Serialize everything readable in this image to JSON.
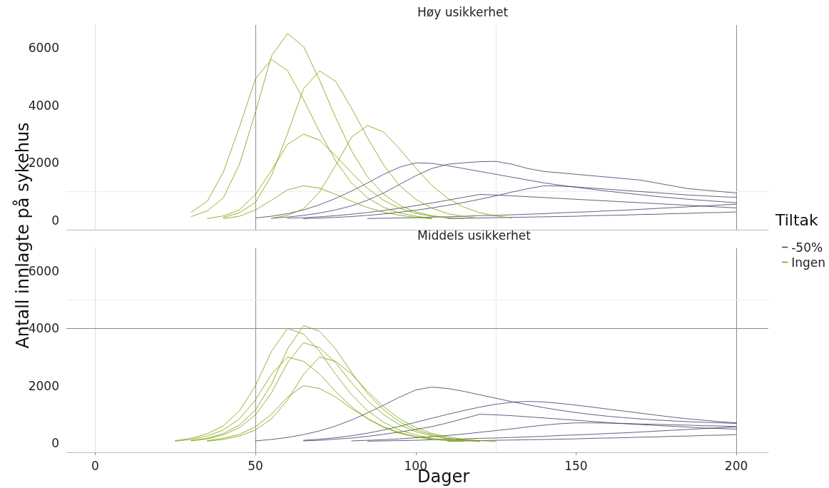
{
  "chart_data": [
    {
      "type": "line",
      "title": "Høy usikkerhet",
      "ylabel": "Antall innlagte på sykehus",
      "legend_title": "Tiltak",
      "legend": "right",
      "tick_labels": "y",
      "grid": false,
      "marker": "none",
      "xlim": [
        -9,
        210
      ],
      "xticks": [
        0,
        50,
        100,
        150,
        200
      ],
      "ylim": [
        -330,
        6800
      ],
      "yticks": [
        0,
        2000,
        4000,
        6000
      ],
      "ref_lines": [
        {
          "axis": "x",
          "value": 50,
          "label": null,
          "color": "#8c8c8c"
        },
        {
          "axis": "x",
          "value": 125,
          "label": null,
          "color": "#e8e8e8"
        },
        {
          "axis": "x",
          "value": 200,
          "label": null,
          "color": "#8c8c8c"
        },
        {
          "axis": "y",
          "value": 1000,
          "label": null,
          "color": "#ececec"
        }
      ],
      "series": [
        {
          "name": "-50%",
          "color": "#3a3b60",
          "x": [
            55,
            60,
            65,
            70,
            75,
            80,
            85,
            90,
            95,
            100,
            105,
            110,
            115,
            120,
            125,
            130,
            135,
            140,
            145,
            150,
            155,
            160,
            165,
            170,
            175,
            180,
            185,
            190,
            195,
            200
          ],
          "values": [
            70,
            110,
            170,
            250,
            360,
            500,
            700,
            950,
            1250,
            1550,
            1800,
            1950,
            2000,
            2040,
            2050,
            1950,
            1800,
            1700,
            1650,
            1600,
            1550,
            1500,
            1450,
            1400,
            1300,
            1200,
            1100,
            1050,
            1000,
            950
          ]
        },
        {
          "color": "#3a3b60",
          "x": [
            50,
            55,
            60,
            65,
            70,
            75,
            80,
            85,
            90,
            95,
            100,
            105,
            110,
            115,
            120,
            125,
            130,
            135,
            140,
            145,
            150,
            155,
            160,
            165,
            170,
            175,
            180,
            185,
            190,
            195,
            200
          ],
          "values": [
            80,
            140,
            230,
            360,
            540,
            760,
            1020,
            1300,
            1600,
            1850,
            2000,
            1980,
            1900,
            1800,
            1700,
            1600,
            1500,
            1400,
            1300,
            1220,
            1150,
            1080,
            1010,
            950,
            890,
            830,
            780,
            730,
            690,
            650,
            610
          ]
        },
        {
          "color": "#3a3b60",
          "x": [
            65,
            70,
            75,
            80,
            85,
            90,
            95,
            100,
            105,
            110,
            115,
            120,
            125,
            130,
            135,
            140,
            145,
            150,
            155,
            160,
            165,
            170,
            175,
            180,
            185,
            190,
            195,
            200
          ],
          "values": [
            55,
            75,
            100,
            130,
            170,
            220,
            280,
            350,
            430,
            520,
            620,
            730,
            850,
            980,
            1100,
            1200,
            1190,
            1160,
            1120,
            1080,
            1040,
            1000,
            960,
            920,
            880,
            850,
            820,
            800
          ]
        },
        {
          "color": "#3a3b60",
          "x": [
            85,
            90,
            95,
            100,
            105,
            110,
            115,
            120,
            125,
            130,
            135,
            140,
            145,
            150,
            155,
            160,
            165,
            170,
            175,
            180,
            185,
            190,
            195,
            200
          ],
          "values": [
            60,
            70,
            80,
            90,
            110,
            120,
            140,
            160,
            170,
            190,
            210,
            230,
            260,
            280,
            300,
            330,
            350,
            380,
            410,
            440,
            470,
            500,
            530,
            560
          ]
        },
        {
          "color": "#3a3b60",
          "x": [
            60,
            65,
            70,
            75,
            80,
            85,
            90,
            95,
            100,
            105,
            110,
            115,
            120,
            125,
            130,
            135,
            140,
            145,
            150,
            155,
            160,
            165,
            170,
            175,
            180,
            185,
            190,
            195,
            200
          ],
          "values": [
            70,
            90,
            120,
            160,
            210,
            270,
            340,
            420,
            510,
            600,
            700,
            800,
            900,
            880,
            850,
            820,
            790,
            760,
            730,
            700,
            670,
            640,
            610,
            580,
            550,
            520,
            490,
            460,
            430
          ]
        },
        {
          "color": "#3a3b60",
          "x": [
            110,
            115,
            120,
            125,
            130,
            135,
            140,
            145,
            150,
            155,
            160,
            165,
            170,
            175,
            180,
            185,
            190,
            195,
            200
          ],
          "values": [
            60,
            70,
            80,
            90,
            100,
            110,
            120,
            130,
            140,
            160,
            170,
            180,
            200,
            210,
            230,
            240,
            260,
            270,
            290
          ]
        },
        {
          "name": "Ingen",
          "color": "#77a000",
          "x": [
            30,
            35,
            40,
            45,
            50,
            55,
            60,
            65,
            70,
            75,
            80,
            85,
            90,
            95,
            100,
            105
          ],
          "values": [
            280,
            670,
            1680,
            3250,
            4930,
            5600,
            5210,
            4200,
            3080,
            2070,
            1290,
            780,
            450,
            250,
            140,
            70
          ]
        },
        {
          "color": "#77a000",
          "x": [
            30,
            35,
            40,
            45,
            50,
            55,
            60,
            65,
            70,
            75,
            80,
            85,
            90,
            95,
            100,
            105,
            110,
            115
          ],
          "values": [
            130,
            330,
            780,
            1950,
            3770,
            5720,
            6500,
            6050,
            4880,
            3580,
            2410,
            1500,
            910,
            520,
            290,
            160,
            90,
            50
          ]
        },
        {
          "color": "#77a000",
          "x": [
            40,
            45,
            50,
            55,
            60,
            65,
            70,
            75,
            80,
            85,
            90,
            95,
            100,
            105,
            110,
            115,
            120
          ],
          "values": [
            100,
            260,
            620,
            1560,
            3020,
            4580,
            5200,
            4840,
            3900,
            2860,
            1920,
            1200,
            730,
            420,
            230,
            130,
            70
          ]
        },
        {
          "color": "#77a000",
          "x": [
            35,
            40,
            45,
            50,
            55,
            60,
            65,
            70,
            75,
            80,
            85,
            90,
            95,
            100,
            105,
            110
          ],
          "values": [
            60,
            150,
            360,
            900,
            1740,
            2640,
            3000,
            2790,
            2250,
            1650,
            1110,
            690,
            420,
            240,
            140,
            80
          ]
        },
        {
          "color": "#77a000",
          "x": [
            55,
            60,
            65,
            70,
            75,
            80,
            85,
            90,
            95,
            100,
            105,
            110,
            115,
            120,
            125,
            130
          ],
          "values": [
            70,
            170,
            400,
            990,
            1910,
            2900,
            3300,
            3070,
            2480,
            1820,
            1220,
            760,
            460,
            260,
            150,
            80
          ]
        },
        {
          "color": "#77a000",
          "x": [
            40,
            45,
            50,
            55,
            60,
            65,
            70,
            75,
            80,
            85,
            90,
            95,
            100,
            105
          ],
          "values": [
            60,
            140,
            360,
            700,
            1060,
            1200,
            1120,
            900,
            660,
            440,
            280,
            170,
            100,
            50
          ]
        }
      ]
    },
    {
      "type": "line",
      "title": "Middels usikkerhet",
      "xlabel": "Dager",
      "grid": false,
      "marker": "none",
      "xlim": [
        -9,
        210
      ],
      "xticks": [
        0,
        50,
        100,
        150,
        200
      ],
      "ylim": [
        -330,
        6800
      ],
      "yticks": [
        0,
        2000,
        4000,
        6000
      ],
      "ref_lines": [
        {
          "axis": "x",
          "value": 50,
          "label": null,
          "color": "#8c8c8c"
        },
        {
          "axis": "x",
          "value": 125,
          "label": null,
          "color": "#e8e8e8"
        },
        {
          "axis": "x",
          "value": 200,
          "label": null,
          "color": "#8c8c8c"
        },
        {
          "axis": "y",
          "value": 4000,
          "label": null,
          "color": "#8c8c8c"
        },
        {
          "axis": "y",
          "value": 5000,
          "label": null,
          "color": "#ececec"
        }
      ],
      "series": [
        {
          "color": "#3a3b60",
          "x": [
            50,
            55,
            60,
            65,
            70,
            75,
            80,
            85,
            90,
            95,
            100,
            105,
            110,
            115,
            120,
            125,
            130,
            135,
            140,
            145,
            150,
            155,
            160,
            165,
            170,
            175,
            180,
            185,
            190,
            195,
            200
          ],
          "values": [
            70,
            120,
            190,
            290,
            420,
            590,
            800,
            1050,
            1320,
            1600,
            1850,
            1950,
            1900,
            1800,
            1680,
            1560,
            1440,
            1330,
            1230,
            1140,
            1060,
            990,
            930,
            880,
            840,
            800,
            770,
            740,
            720,
            700,
            680
          ]
        },
        {
          "color": "#3a3b60",
          "x": [
            65,
            70,
            75,
            80,
            85,
            90,
            95,
            100,
            105,
            110,
            115,
            120,
            125,
            130,
            135,
            140,
            145,
            150,
            155,
            160,
            165,
            170,
            175,
            180,
            185,
            190,
            195,
            200
          ],
          "values": [
            90,
            130,
            180,
            250,
            340,
            450,
            580,
            720,
            860,
            1000,
            1130,
            1250,
            1350,
            1420,
            1450,
            1430,
            1380,
            1320,
            1250,
            1180,
            1110,
            1040,
            970,
            900,
            840,
            790,
            740,
            700
          ]
        },
        {
          "color": "#3a3b60",
          "x": [
            65,
            70,
            75,
            80,
            85,
            90,
            95,
            100,
            105,
            110,
            115,
            120,
            125,
            130,
            135,
            140,
            145,
            150,
            155,
            160,
            165,
            170,
            175,
            180,
            185,
            190,
            195,
            200
          ],
          "values": [
            70,
            90,
            130,
            170,
            230,
            300,
            380,
            470,
            570,
            700,
            850,
            1000,
            980,
            950,
            910,
            870,
            830,
            790,
            750,
            710,
            670,
            640,
            610,
            580,
            550,
            520,
            500,
            480
          ]
        },
        {
          "color": "#3a3b60",
          "x": [
            85,
            90,
            95,
            100,
            105,
            110,
            115,
            120,
            125,
            130,
            135,
            140,
            145,
            150,
            155,
            160,
            165,
            170,
            175,
            180,
            185,
            190,
            195,
            200
          ],
          "values": [
            60,
            70,
            80,
            90,
            110,
            120,
            140,
            160,
            170,
            190,
            210,
            230,
            260,
            280,
            300,
            330,
            350,
            380,
            410,
            440,
            470,
            500,
            530,
            560
          ]
        },
        {
          "color": "#3a3b60",
          "x": [
            80,
            85,
            90,
            95,
            100,
            105,
            110,
            115,
            120,
            125,
            130,
            135,
            140,
            145,
            150,
            155,
            160,
            165,
            170,
            175,
            180,
            185,
            190,
            195,
            200
          ],
          "values": [
            70,
            90,
            110,
            140,
            180,
            220,
            260,
            310,
            370,
            430,
            490,
            560,
            620,
            670,
            700,
            700,
            690,
            680,
            660,
            650,
            630,
            620,
            600,
            590,
            570
          ]
        },
        {
          "color": "#3a3b60",
          "x": [
            110,
            115,
            120,
            125,
            130,
            135,
            140,
            145,
            150,
            155,
            160,
            165,
            170,
            175,
            180,
            185,
            190,
            195,
            200
          ],
          "values": [
            60,
            70,
            80,
            90,
            100,
            110,
            120,
            130,
            140,
            160,
            170,
            180,
            200,
            210,
            230,
            240,
            260,
            270,
            290
          ]
        },
        {
          "color": "#77a000",
          "x": [
            25,
            30,
            35,
            40,
            45,
            50,
            55,
            60,
            65,
            70,
            75,
            80,
            85,
            90,
            95,
            100,
            105,
            110,
            115
          ],
          "values": [
            80,
            160,
            320,
            600,
            1120,
            2000,
            3200,
            4000,
            3800,
            3200,
            2400,
            1680,
            1120,
            720,
            440,
            280,
            160,
            100,
            60
          ]
        },
        {
          "color": "#77a000",
          "x": [
            30,
            35,
            40,
            45,
            50,
            55,
            60,
            65,
            70,
            75,
            80,
            85,
            90,
            95,
            100,
            105,
            110,
            115,
            120
          ],
          "values": [
            80,
            160,
            330,
            620,
            1150,
            2050,
            3280,
            4100,
            3900,
            3280,
            2460,
            1720,
            1150,
            740,
            450,
            290,
            160,
            100,
            60
          ]
        },
        {
          "color": "#77a000",
          "x": [
            30,
            35,
            40,
            45,
            50,
            55,
            60,
            65,
            70,
            75,
            80,
            85,
            90,
            95,
            100,
            105,
            110,
            115,
            120
          ],
          "values": [
            70,
            140,
            280,
            530,
            980,
            1750,
            2800,
            3500,
            3330,
            2800,
            2100,
            1470,
            980,
            630,
            390,
            250,
            140,
            90,
            50
          ]
        },
        {
          "color": "#77a000",
          "x": [
            35,
            40,
            45,
            50,
            55,
            60,
            65,
            70,
            75,
            80,
            85,
            90,
            95,
            100,
            105,
            110,
            115,
            120,
            125
          ],
          "values": [
            60,
            120,
            240,
            450,
            840,
            1500,
            2400,
            3000,
            2850,
            2400,
            1800,
            1260,
            840,
            540,
            330,
            210,
            120,
            80,
            50
          ]
        },
        {
          "color": "#77a000",
          "x": [
            25,
            30,
            35,
            40,
            45,
            50,
            55,
            60,
            65,
            70,
            75,
            80,
            85,
            90,
            95,
            100,
            105,
            110,
            115
          ],
          "values": [
            60,
            120,
            240,
            450,
            840,
            1500,
            2400,
            3000,
            2850,
            2400,
            1800,
            1260,
            840,
            540,
            330,
            210,
            120,
            80,
            50
          ]
        },
        {
          "color": "#77a000",
          "x": [
            35,
            40,
            45,
            50,
            55,
            60,
            65,
            70,
            75,
            80,
            85,
            90,
            95,
            100,
            105
          ],
          "values": [
            80,
            160,
            300,
            560,
            1000,
            1600,
            2000,
            1900,
            1600,
            1200,
            850,
            560,
            360,
            220,
            140
          ]
        }
      ]
    }
  ]
}
